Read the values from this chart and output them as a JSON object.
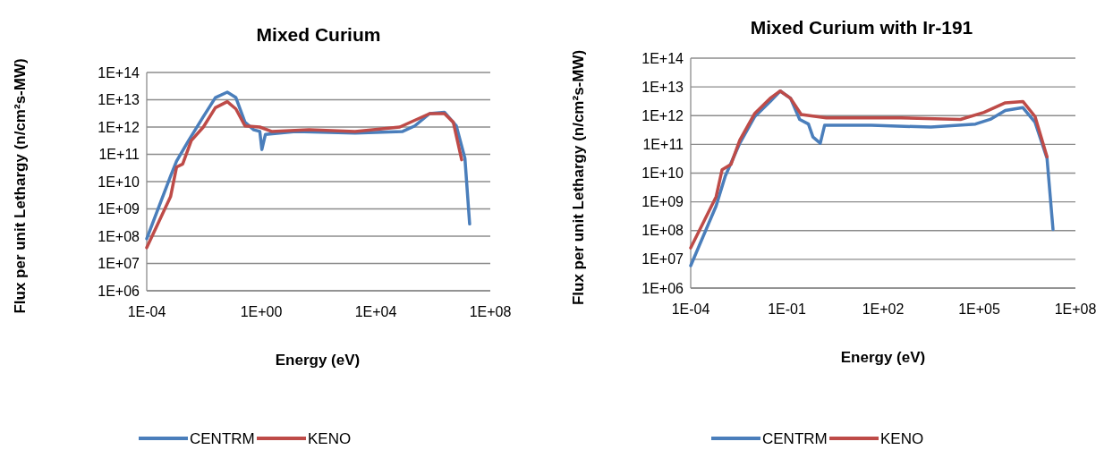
{
  "chart_data": [
    {
      "type": "line",
      "title": "Mixed Curium",
      "xlabel": "Energy (eV)",
      "ylabel": "Flux per unit Lethargy (n/cm²s-MW)",
      "log": "xy",
      "grid": "y",
      "legend": "bottom",
      "marker": "none",
      "line_style": "solid",
      "xlim": [
        0.0001,
        100000000.0
      ],
      "xticks": [
        {
          "value": 0.0001,
          "label": "1E-04"
        },
        {
          "value": 1,
          "label": "1E+00"
        },
        {
          "value": 10000.0,
          "label": "1E+04"
        },
        {
          "value": 100000000.0,
          "label": "1E+08"
        }
      ],
      "ylim": [
        1000000.0,
        100000000000000.0
      ],
      "yticks": [
        {
          "value": 1000000.0,
          "label": "1E+06"
        },
        {
          "value": 10000000.0,
          "label": "1E+07"
        },
        {
          "value": 100000000.0,
          "label": "1E+08"
        },
        {
          "value": 1000000000.0,
          "label": "1E+09"
        },
        {
          "value": 10000000000.0,
          "label": "1E+10"
        },
        {
          "value": 100000000000.0,
          "label": "1E+11"
        },
        {
          "value": 1000000000000.0,
          "label": "1E+12"
        },
        {
          "value": 10000000000000.0,
          "label": "1E+13"
        },
        {
          "value": 100000000000000.0,
          "label": "1E+14"
        }
      ],
      "series": [
        {
          "name": "CENTRM",
          "color": "#4a7ebb",
          "x": [
            0.0001,
            0.00068,
            0.0011,
            0.0029,
            0.0095,
            0.025,
            0.065,
            0.13,
            0.27,
            0.55,
            0.89,
            1.05,
            1.4,
            16,
            1900,
            87000.0,
            230000.0,
            760000.0,
            2500000.0,
            6500000.0,
            13000000.0,
            19000000.0
          ],
          "values": [
            81000000.0,
            16000000000.0,
            56000000000.0,
            320000000000.0,
            2400000000000.0,
            12000000000000.0,
            19000000000000.0,
            12000000000000.0,
            1500000000000.0,
            790000000000.0,
            690000000000.0,
            150000000000.0,
            540000000000.0,
            690000000000.0,
            600000000000.0,
            690000000000.0,
            1100000000000.0,
            3100000000000.0,
            3500000000000.0,
            1100000000000.0,
            72000000000.0,
            280000000.0
          ]
        },
        {
          "name": "KENO",
          "color": "#be4b48",
          "x": [
            0.0001,
            0.00068,
            0.0011,
            0.0018,
            0.0036,
            0.0095,
            0.025,
            0.065,
            0.13,
            0.27,
            0.89,
            2.3,
            47,
            1900,
            69000.0,
            760000.0,
            2500000.0,
            5100000.0,
            10000000.0
          ],
          "values": [
            38000000.0,
            2800000000.0,
            34000000000.0,
            44000000000.0,
            320000000000.0,
            1000000000000.0,
            5100000000000.0,
            8500000000000.0,
            4600000000000.0,
            1100000000000.0,
            1000000000000.0,
            690000000000.0,
            790000000000.0,
            690000000000.0,
            1000000000000.0,
            3100000000000.0,
            3100000000000.0,
            1500000000000.0,
            63000000000.0
          ]
        }
      ]
    },
    {
      "type": "line",
      "title": "Mixed Curium with Ir-191",
      "xlabel": "Energy (eV)",
      "ylabel": "Flux per unit Lethargy (n/cm²s-MW)",
      "log": "xy",
      "grid": "y",
      "legend": "bottom",
      "marker": "none",
      "line_style": "solid",
      "xlim": [
        0.0001,
        100000000.0
      ],
      "xticks": [
        {
          "value": 0.0001,
          "label": "1E-04"
        },
        {
          "value": 0.1,
          "label": "1E-01"
        },
        {
          "value": 100,
          "label": "1E+02"
        },
        {
          "value": 100000.0,
          "label": "1E+05"
        },
        {
          "value": 100000000.0,
          "label": "1E+08"
        }
      ],
      "ylim": [
        1000000.0,
        100000000000000.0
      ],
      "yticks": [
        {
          "value": 1000000.0,
          "label": "1E+06"
        },
        {
          "value": 10000000.0,
          "label": "1E+07"
        },
        {
          "value": 100000000.0,
          "label": "1E+08"
        },
        {
          "value": 1000000000.0,
          "label": "1E+09"
        },
        {
          "value": 10000000000.0,
          "label": "1E+10"
        },
        {
          "value": 100000000000.0,
          "label": "1E+11"
        },
        {
          "value": 1000000000000.0,
          "label": "1E+12"
        },
        {
          "value": 10000000000000.0,
          "label": "1E+13"
        },
        {
          "value": 100000000000000.0,
          "label": "1E+14"
        }
      ],
      "series": [
        {
          "name": "CENTRM",
          "color": "#4a7ebb",
          "x": [
            0.0001,
            0.00062,
            0.0012,
            0.0034,
            0.01,
            0.03,
            0.062,
            0.13,
            0.25,
            0.47,
            0.65,
            1.1,
            1.5,
            43,
            3100,
            76000.0,
            220000.0,
            650000.0,
            2300000.0,
            5500000.0,
            13000000.0,
            20000000.0
          ],
          "values": [
            6000000.0,
            720000000.0,
            7900000000.0,
            110000000000.0,
            930000000000.0,
            3100000000000.0,
            7200000000000.0,
            4000000000000.0,
            740000000000.0,
            510000000000.0,
            180000000000.0,
            110000000000.0,
            460000000000.0,
            460000000000.0,
            400000000000.0,
            510000000000.0,
            740000000000.0,
            1500000000000.0,
            1900000000000.0,
            590000000000.0,
            33000000000.0,
            110000000.0
          ]
        },
        {
          "name": "KENO",
          "color": "#be4b48",
          "x": [
            0.0001,
            0.00062,
            0.00095,
            0.0018,
            0.0034,
            0.01,
            0.03,
            0.062,
            0.13,
            0.28,
            1.7,
            360,
            26000.0,
            140000.0,
            650000.0,
            2300000.0,
            5500000.0,
            13000000.0
          ],
          "values": [
            25000000.0,
            1500000000.0,
            13000000000.0,
            20000000000.0,
            140000000000.0,
            1200000000000.0,
            4000000000000.0,
            7200000000000.0,
            4000000000000.0,
            1100000000000.0,
            830000000000.0,
            830000000000.0,
            740000000000.0,
            1300000000000.0,
            2800000000000.0,
            3100000000000.0,
            930000000000.0,
            37000000000.0
          ]
        }
      ]
    }
  ]
}
